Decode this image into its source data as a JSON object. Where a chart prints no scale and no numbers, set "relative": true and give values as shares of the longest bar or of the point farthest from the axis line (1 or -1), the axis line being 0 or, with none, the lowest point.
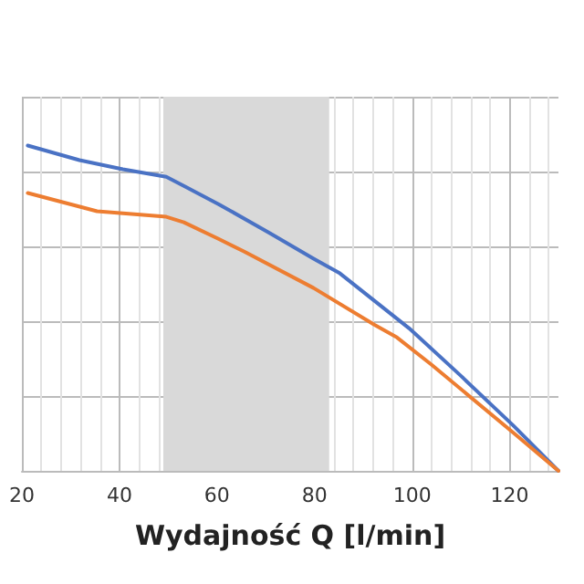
{
  "chart_data": {
    "type": "line",
    "xlabel": "Wydajność Q [l/min]",
    "relative": true,
    "xlim": [
      20,
      130
    ],
    "xticks": [
      20,
      40,
      60,
      80,
      100,
      120
    ],
    "grid": true,
    "marker": "none",
    "line_style": "solid",
    "bands": [
      {
        "axis": "x",
        "from": 49,
        "to": 83,
        "color": "#d9d9d9"
      }
    ],
    "series": [
      {
        "color": "#4a72c4",
        "x": [
          21.2,
          31.8,
          40.7,
          49.6,
          53.2,
          60.3,
          70.9,
          79.8,
          85.2,
          99.4,
          110,
          120.7,
          130
        ],
        "values": [
          1,
          0.955,
          0.927,
          0.904,
          0.876,
          0.82,
          0.73,
          0.652,
          0.607,
          0.438,
          0.292,
          0.14,
          0
        ]
      },
      {
        "color": "#ed7d31",
        "x": [
          21.2,
          35.4,
          49.6,
          53.2,
          60.3,
          65.6,
          79.8,
          92.3,
          96.9,
          104,
          120.7,
          130
        ],
        "values": [
          0.854,
          0.798,
          0.781,
          0.764,
          0.713,
          0.674,
          0.562,
          0.449,
          0.41,
          0.326,
          0.118,
          0
        ]
      }
    ]
  }
}
